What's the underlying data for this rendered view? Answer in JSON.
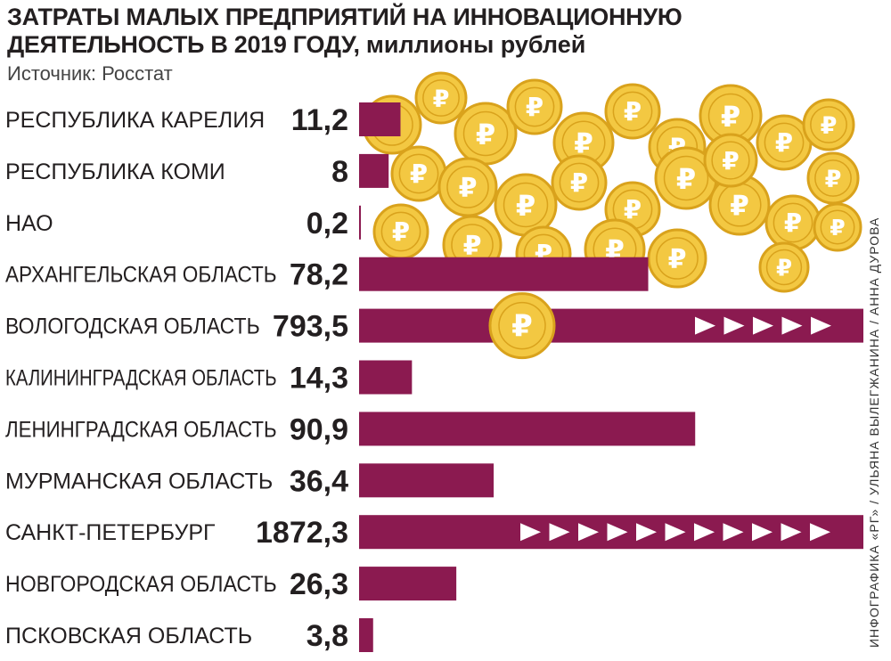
{
  "title_line1": "ЗАТРАТЫ МАЛЫХ ПРЕДПРИЯТИЙ НА ИННОВАЦИОННУЮ",
  "title_line2": "ДЕЯТЕЛЬНОСТЬ В 2019 ГОДУ,",
  "title_unit": "миллионы рублей",
  "source": "Источник: Росстат",
  "credit": "ИНФОГРАФИКА «РГ» / УЛЬЯНА ВЫЛЕГЖАНИНА / АННА ДУРОВА",
  "colors": {
    "bar": "#8b1a50",
    "coin": "#f3c842",
    "coin_edge": "#d9a21c",
    "text": "#231f20"
  },
  "chart_data": {
    "type": "bar",
    "orientation": "horizontal",
    "title": "ЗАТРАТЫ МАЛЫХ ПРЕДПРИЯТИЙ НА ИННОВАЦИОННУЮ ДЕЯТЕЛЬНОСТЬ В 2019 ГОДУ, миллионы рублей",
    "categories": [
      "РЕСПУБЛИКА КАРЕЛИЯ",
      "РЕСПУБЛИКА КОМИ",
      "НАО",
      "АРХАНГЕЛЬСКАЯ ОБЛАСТЬ",
      "ВОЛОГОДСКАЯ ОБЛАСТЬ",
      "КАЛИНИНГРАДСКАЯ ОБЛАСТЬ",
      "ЛЕНИНГРАДСКАЯ ОБЛАСТЬ",
      "МУРМАНСКАЯ ОБЛАСТЬ",
      "САНКТ-ПЕТЕРБУРГ",
      "НОВГОРОДСКАЯ ОБЛАСТЬ",
      "ПСКОВСКАЯ ОБЛАСТЬ"
    ],
    "values": [
      11.2,
      8,
      0.2,
      78.2,
      793.5,
      14.3,
      90.9,
      36.4,
      1872.3,
      26.3,
      3.8
    ],
    "value_labels": [
      "11,2",
      "8",
      "0,2",
      "78,2",
      "793,5",
      "14,3",
      "90,9",
      "36,4",
      "1872,3",
      "26,3",
      "3,8"
    ],
    "truncated": [
      false,
      false,
      false,
      false,
      true,
      false,
      false,
      false,
      true,
      false,
      false
    ],
    "grid": false,
    "legend": "none"
  }
}
